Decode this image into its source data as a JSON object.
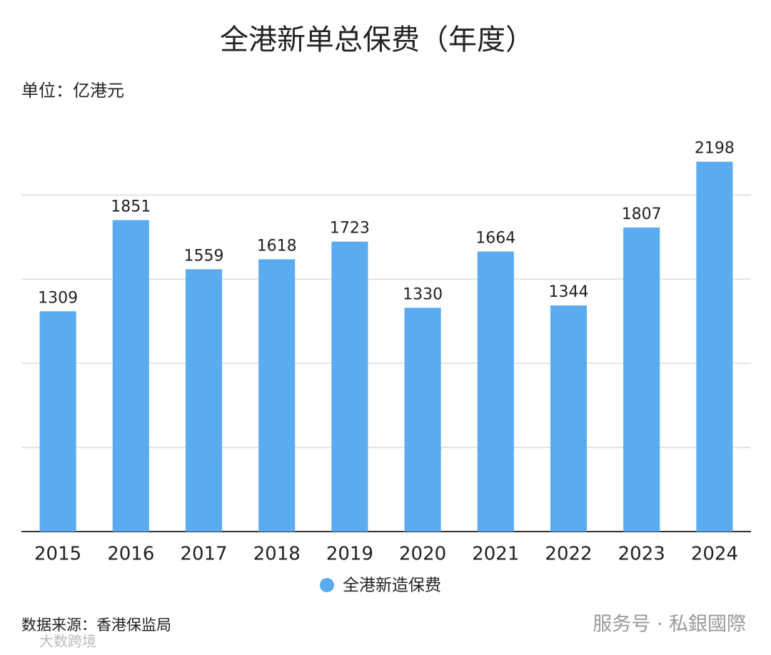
{
  "chart_data": {
    "type": "bar",
    "title": "全港新单总保费（年度）",
    "unit_label": "单位：亿港元",
    "categories": [
      "2015",
      "2016",
      "2017",
      "2018",
      "2019",
      "2020",
      "2021",
      "2022",
      "2023",
      "2024"
    ],
    "series": [
      {
        "name": "全港新造保费",
        "color": "#5aabf0",
        "values": [
          1309,
          1851,
          1559,
          1618,
          1723,
          1330,
          1664,
          1344,
          1807,
          2198
        ]
      }
    ],
    "ylim": [
      0,
      2400
    ],
    "yticks": [
      0,
      500,
      1000,
      1500,
      2000
    ],
    "grid": true,
    "source": "数据来源：香港保监局",
    "watermark": "服务号 · 私銀國際",
    "corner_mark": "大数跨境"
  }
}
